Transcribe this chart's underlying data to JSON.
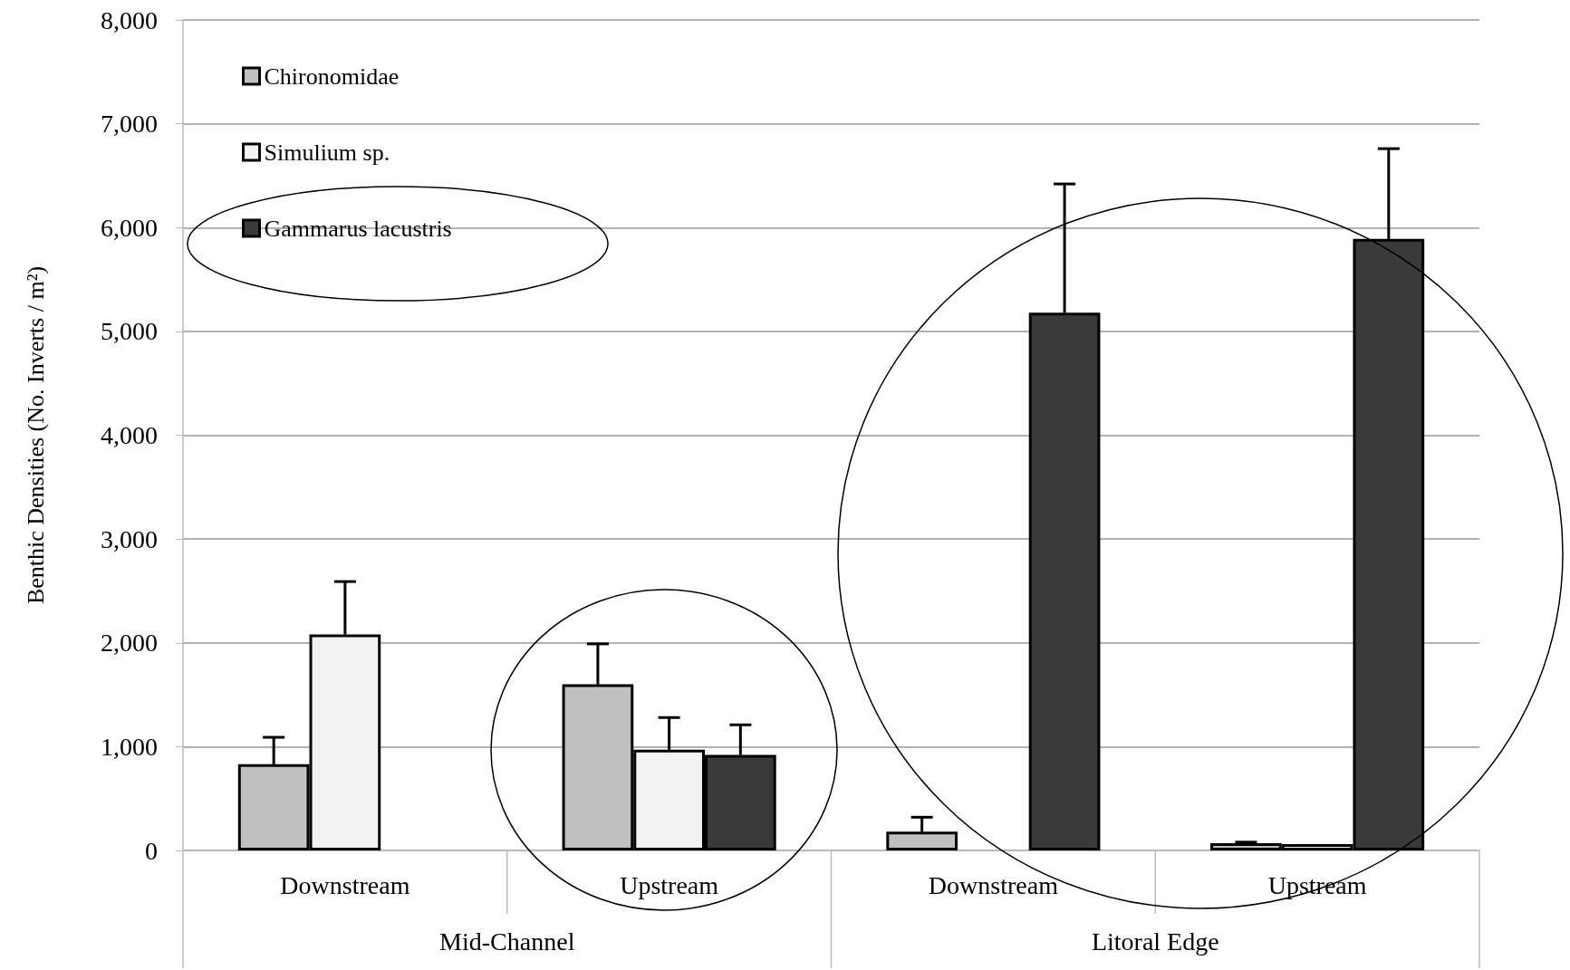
{
  "chart_data": {
    "type": "bar",
    "categories": [
      "Downstream",
      "Upstream",
      "Downstream",
      "Upstream"
    ],
    "series": [
      {
        "name": "Chironomidae",
        "color": "#c0c0c0",
        "values": [
          830,
          1600,
          180,
          70
        ],
        "errors": [
          [
            830,
            1090
          ],
          [
            1600,
            1990
          ],
          [
            180,
            320
          ],
          [
            70,
            80
          ]
        ]
      },
      {
        "name": "Simulium sp.",
        "color": "#f2f2f2",
        "values": [
          2080,
          970,
          null,
          60
        ],
        "errors": [
          [
            2080,
            2590
          ],
          [
            970,
            1280
          ],
          null,
          null
        ]
      },
      {
        "name": "Gammarus lacustris",
        "color": "#3a3a3a",
        "values": [
          null,
          920,
          5180,
          5890
        ],
        "errors": [
          null,
          [
            920,
            1210
          ],
          [
            5180,
            6420
          ],
          [
            5890,
            6760
          ]
        ]
      }
    ],
    "ylabel": "Benthic Densities (No. Inverts / m²)",
    "annotations": [
      "Mid-Channel",
      "Litoral Edge"
    ],
    "ylim": [
      0,
      8000
    ],
    "yticks": [
      0,
      {
        "value": 1000,
        "label": "1,000"
      },
      {
        "value": 2000,
        "label": "2,000"
      },
      {
        "value": 3000,
        "label": "3,000"
      },
      {
        "value": 4000,
        "label": "4,000"
      },
      {
        "value": 5000,
        "label": "5,000"
      },
      {
        "value": 6000,
        "label": "6,000"
      },
      {
        "value": 7000,
        "label": "7,000"
      },
      {
        "value": 8000,
        "label": "8,000"
      }
    ],
    "grid": "y",
    "legend": "top left"
  }
}
